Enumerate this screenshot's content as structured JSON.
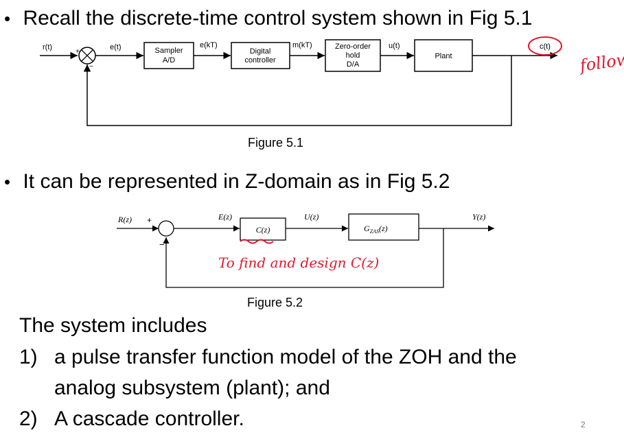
{
  "slide": {
    "bullet1": "Recall the discrete-time control system shown in Fig 5.1",
    "bullet2": "It can be represented in Z-domain as in Fig 5.2",
    "body_intro": "The system includes",
    "item1_num": "1)",
    "item1_line1": "a pulse transfer function model of the ZOH and the",
    "item1_line2": "analog subsystem (plant); and",
    "item2_num": "2)",
    "item2_text": "A cascade controller.",
    "page_number": "2"
  },
  "figure1": {
    "caption": "Figure 5.1",
    "input_label": "r(t)",
    "error_label": "e(t)",
    "sampled_error_label": "e(kT)",
    "controller_out_label": "m(kT)",
    "control_label": "u(t)",
    "output_label": "c(t)",
    "plus_sign": "+",
    "minus_sign": "−",
    "sampler_line1": "Sampler",
    "sampler_line2": "A/D",
    "controller_line1": "Digital",
    "controller_line2": "controller",
    "zoh_line1": "Zero-order",
    "zoh_line2": "hold",
    "zoh_line3": "D/A",
    "plant_label": "Plant"
  },
  "figure2": {
    "caption": "Figure 5.2",
    "input_label": "R(z)",
    "plus_sign": "+",
    "minus_sign": "−",
    "error_label": "E(z)",
    "controller_label": "C(z)",
    "control_label": "U(z)",
    "plant_label": "G_ZAS(z)",
    "plant_label_main": "G",
    "plant_label_sub": "ZAS",
    "plant_label_arg": "(z)",
    "output_label": "Y(z)"
  },
  "annotations": {
    "note1": "follow",
    "note2": "To find and design C(z)"
  },
  "colors": {
    "ink": "#000000",
    "annotation": "#e0182d",
    "page_number": "#777777"
  }
}
